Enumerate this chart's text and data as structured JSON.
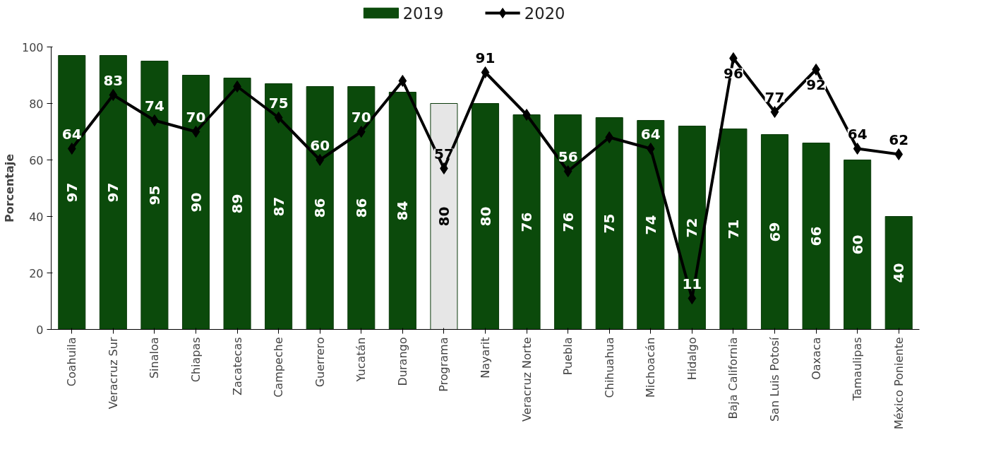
{
  "chart_data": {
    "type": "bar",
    "ylabel": "Porcentaje",
    "categories": [
      "Coahuila",
      "Veracruz Sur",
      "Sinaloa",
      "Chiapas",
      "Zacatecas",
      "Campeche",
      "Guerrero",
      "Yucatán",
      "Durango",
      "Programa",
      "Nayarit",
      "Veracruz Norte",
      "Puebla",
      "Chihuahua",
      "Michoacán",
      "Hidalgo",
      "Baja California",
      "San Luis Potosí",
      "Oaxaca",
      "Tamaulipas",
      "México Poniente"
    ],
    "ylim": [
      0,
      100
    ],
    "yticks": [
      0,
      20,
      40,
      60,
      80,
      100
    ],
    "grid": false,
    "legend": "top",
    "series": [
      {
        "name": "2019",
        "color": "#0b4a0b",
        "colors": [
          "#0b4a0b",
          "#0b4a0b",
          "#0b4a0b",
          "#0b4a0b",
          "#0b4a0b",
          "#0b4a0b",
          "#0b4a0b",
          "#0b4a0b",
          "#0b4a0b",
          "#e6e6e6",
          "#0b4a0b",
          "#0b4a0b",
          "#0b4a0b",
          "#0b4a0b",
          "#0b4a0b",
          "#0b4a0b",
          "#0b4a0b",
          "#0b4a0b",
          "#0b4a0b",
          "#0b4a0b",
          "#0b4a0b"
        ],
        "values": [
          97,
          97,
          95,
          90,
          89,
          87,
          86,
          86,
          84,
          80,
          80,
          76,
          76,
          75,
          74,
          72,
          71,
          69,
          66,
          60,
          40
        ],
        "value_labels": [
          "97",
          "97",
          "95",
          "90",
          "89",
          "87",
          "86",
          "86",
          "84",
          "80",
          "80",
          "76",
          "76",
          "75",
          "74",
          "72",
          "71",
          "69",
          "66",
          "60",
          "40"
        ]
      },
      {
        "name": "2020",
        "type": "line",
        "color": "#000000",
        "marker": "diamond",
        "values": [
          64,
          83,
          74,
          70,
          86,
          75,
          60,
          70,
          88,
          57,
          91,
          76,
          56,
          68,
          64,
          11,
          96,
          77,
          92,
          64,
          62
        ],
        "value_labels": [
          "64",
          "83",
          "74",
          "70",
          null,
          "75",
          "60",
          "70",
          null,
          "57",
          "91",
          null,
          "56",
          null,
          "64",
          "11",
          "96",
          "77",
          "92",
          "64",
          "62"
        ]
      }
    ]
  }
}
